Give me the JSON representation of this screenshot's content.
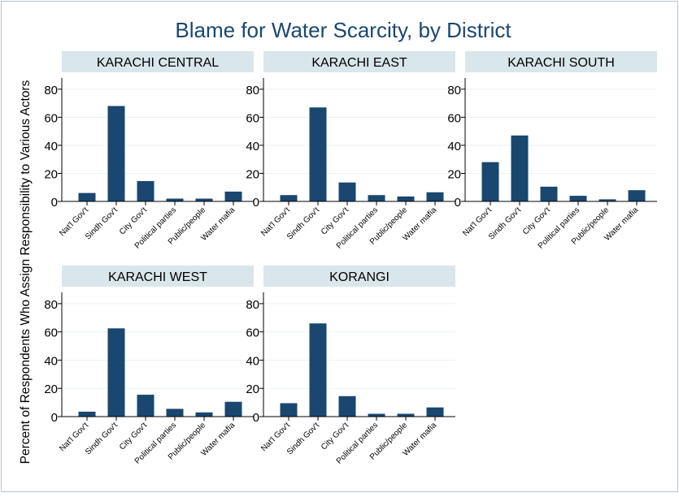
{
  "chart_data": {
    "type": "bar",
    "title": "Blame for Water Scarcity, by District",
    "ylabel": "Percent of Respondents Who Assign Responsibility to Various Actors",
    "xlabel": "",
    "ylim": [
      0,
      88
    ],
    "yticks": [
      0,
      20,
      40,
      60,
      80
    ],
    "grid": true,
    "bar_color": "#1a476f",
    "strip_color": "#d9e6eb",
    "title_color": "#1a476f",
    "categories": [
      "Nat'l Gov't",
      "Sindh Gov't",
      "City Gov't",
      "Political parties",
      "Public/people",
      "Water mafia"
    ],
    "panels": [
      {
        "name": "KARACHI CENTRAL",
        "values": [
          6,
          68,
          14.5,
          2,
          2,
          7
        ]
      },
      {
        "name": "KARACHI EAST",
        "values": [
          4.5,
          67,
          13.5,
          4.5,
          3.5,
          6.5
        ]
      },
      {
        "name": "KARACHI SOUTH",
        "values": [
          28,
          47,
          10.5,
          4,
          1.5,
          8
        ]
      },
      {
        "name": "KARACHI WEST",
        "values": [
          3.5,
          62.5,
          15.5,
          5.5,
          3,
          10.5
        ]
      },
      {
        "name": "KORANGI",
        "values": [
          9.5,
          66,
          14.5,
          2,
          2,
          6.5
        ]
      }
    ]
  }
}
